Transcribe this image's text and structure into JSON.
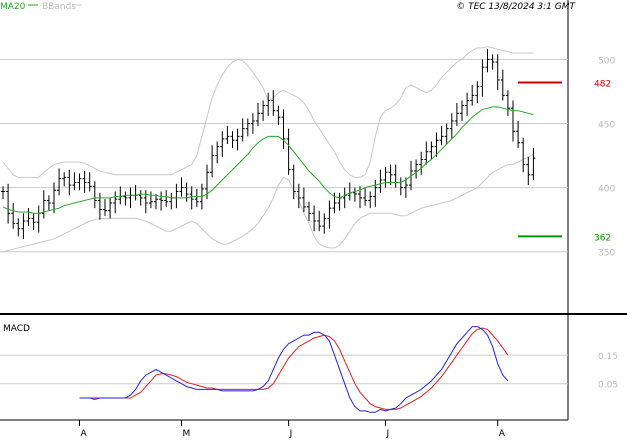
{
  "header": {
    "ma_label": "MA20",
    "bb_label": "BBands",
    "copyright": "© TEC 13/8/2024 3:1 GMT"
  },
  "macd_panel": {
    "label": "MACD"
  },
  "colors": {
    "ma": "#22aa22",
    "bbands": "#c8c8c8",
    "resistance": "#cc0000",
    "support": "#009900",
    "macd": "#2222dd",
    "signal": "#dd2222",
    "bars": "#000000",
    "grid": "#cccccc"
  },
  "chart_data": [
    {
      "type": "ohlc",
      "ylim": [
        303,
        537
      ],
      "yticks": [
        350,
        400,
        450,
        500
      ],
      "ytick_labels": [
        "350",
        "400",
        "450",
        "500"
      ],
      "x_month_labels": [
        {
          "label": "A",
          "index": 15
        },
        {
          "label": "M",
          "index": 35
        },
        {
          "label": "J",
          "index": 56
        },
        {
          "label": "J",
          "index": 75
        },
        {
          "label": "A",
          "index": 97
        }
      ],
      "levels": [
        {
          "name": "resistance",
          "value": 482,
          "label": "482"
        },
        {
          "name": "support",
          "value": 362,
          "label": "362"
        }
      ],
      "closes": [
        397,
        380,
        372,
        368,
        374,
        376,
        373,
        380,
        390,
        388,
        398,
        407,
        408,
        402,
        404,
        407,
        404,
        401,
        390,
        383,
        382,
        388,
        391,
        393,
        392,
        394,
        394,
        392,
        388,
        389,
        391,
        390,
        389,
        392,
        397,
        400,
        395,
        391,
        389,
        399,
        412,
        425,
        432,
        438,
        440,
        437,
        440,
        446,
        450,
        452,
        458,
        464,
        468,
        460,
        455,
        438,
        414,
        397,
        392,
        385,
        380,
        374,
        370,
        376,
        384,
        388,
        392,
        394,
        396,
        395,
        392,
        390,
        393,
        400,
        406,
        412,
        410,
        404,
        400,
        402,
        413,
        418,
        422,
        428,
        432,
        437,
        440,
        446,
        452,
        458,
        464,
        468,
        472,
        479,
        494,
        500,
        498,
        484,
        472,
        462,
        444,
        435,
        418,
        410,
        423
      ],
      "ma20": [
        385,
        383,
        382,
        381,
        381,
        381,
        380,
        380,
        381,
        382,
        383,
        384,
        386,
        387,
        388,
        389,
        390,
        391,
        392,
        392,
        392,
        392,
        393,
        393,
        394,
        394,
        394,
        395,
        395,
        394,
        394,
        393,
        393,
        392,
        392,
        392,
        392,
        393,
        393,
        393,
        395,
        398,
        402,
        406,
        410,
        414,
        418,
        422,
        426,
        431,
        435,
        438,
        440,
        440,
        440,
        437,
        433,
        428,
        423,
        418,
        413,
        409,
        405,
        400,
        396,
        393,
        392,
        394,
        396,
        397,
        398,
        400,
        401,
        402,
        403,
        404,
        404,
        404,
        404,
        406,
        409,
        412,
        415,
        419,
        422,
        426,
        430,
        434,
        438,
        442,
        447,
        451,
        455,
        458,
        461,
        462,
        463,
        463,
        462,
        461,
        460,
        460,
        459,
        458,
        457
      ],
      "bb_upper": [
        420,
        415,
        410,
        408,
        408,
        408,
        408,
        408,
        412,
        415,
        418,
        419,
        420,
        420,
        420,
        420,
        419,
        417,
        415,
        413,
        412,
        411,
        410,
        410,
        410,
        410,
        410,
        410,
        410,
        410,
        410,
        410,
        410,
        410,
        412,
        414,
        416,
        418,
        425,
        440,
        455,
        470,
        480,
        488,
        494,
        498,
        500,
        499,
        495,
        490,
        484,
        478,
        468,
        470,
        474,
        476,
        474,
        472,
        470,
        466,
        460,
        452,
        446,
        440,
        434,
        428,
        420,
        414,
        410,
        408,
        408,
        410,
        420,
        440,
        455,
        460,
        462,
        465,
        470,
        478,
        480,
        478,
        476,
        474,
        476,
        480,
        486,
        490,
        494,
        498,
        500,
        504,
        507,
        509,
        509,
        510,
        509,
        508,
        507,
        506,
        505,
        505,
        505,
        505,
        505
      ],
      "bb_lower": [
        350,
        351,
        352,
        353,
        354,
        355,
        356,
        357,
        358,
        359,
        360,
        362,
        364,
        366,
        368,
        370,
        372,
        374,
        375,
        376,
        376,
        376,
        376,
        376,
        376,
        376,
        376,
        375,
        374,
        372,
        370,
        368,
        366,
        366,
        368,
        370,
        372,
        374,
        372,
        368,
        364,
        360,
        358,
        356,
        356,
        358,
        360,
        362,
        365,
        368,
        372,
        378,
        384,
        392,
        402,
        408,
        406,
        398,
        390,
        380,
        372,
        362,
        356,
        354,
        353,
        353,
        355,
        360,
        366,
        372,
        376,
        378,
        380,
        380,
        380,
        380,
        380,
        379,
        378,
        378,
        380,
        382,
        384,
        385,
        386,
        387,
        388,
        389,
        390,
        392,
        394,
        396,
        398,
        400,
        404,
        408,
        412,
        414,
        416,
        418,
        418,
        420,
        422,
        424,
        426
      ]
    },
    {
      "type": "line",
      "title": "MACD",
      "ylim": [
        -0.07,
        0.28
      ],
      "yticks": [
        0.05,
        0.15
      ],
      "ytick_labels": [
        "0.05",
        "0.15"
      ],
      "macd": [
        0.0,
        0.0,
        0.0,
        -0.005,
        0.0,
        0.0,
        0.0,
        0.0,
        0.0,
        0.0,
        0.01,
        0.03,
        0.06,
        0.08,
        0.09,
        0.1,
        0.09,
        0.08,
        0.07,
        0.06,
        0.05,
        0.04,
        0.035,
        0.03,
        0.03,
        0.03,
        0.03,
        0.03,
        0.025,
        0.025,
        0.025,
        0.025,
        0.025,
        0.025,
        0.025,
        0.03,
        0.04,
        0.06,
        0.1,
        0.14,
        0.17,
        0.19,
        0.2,
        0.21,
        0.22,
        0.22,
        0.23,
        0.23,
        0.22,
        0.2,
        0.15,
        0.1,
        0.05,
        0.0,
        -0.03,
        -0.045,
        -0.045,
        -0.05,
        -0.05,
        -0.04,
        -0.045,
        -0.04,
        -0.035,
        -0.02,
        0.0,
        0.01,
        0.02,
        0.03,
        0.045,
        0.06,
        0.08,
        0.1,
        0.13,
        0.16,
        0.19,
        0.21,
        0.23,
        0.25,
        0.25,
        0.24,
        0.22,
        0.18,
        0.12,
        0.08,
        0.06
      ],
      "signal": [
        0.0,
        0.0,
        0.0,
        0.0,
        0.0,
        0.0,
        0.0,
        0.0,
        0.0,
        0.0,
        0.0,
        0.01,
        0.02,
        0.04,
        0.06,
        0.08,
        0.085,
        0.085,
        0.08,
        0.075,
        0.065,
        0.055,
        0.05,
        0.045,
        0.04,
        0.035,
        0.035,
        0.03,
        0.03,
        0.03,
        0.03,
        0.03,
        0.03,
        0.03,
        0.03,
        0.03,
        0.03,
        0.035,
        0.05,
        0.08,
        0.11,
        0.14,
        0.16,
        0.18,
        0.19,
        0.2,
        0.21,
        0.215,
        0.22,
        0.215,
        0.2,
        0.17,
        0.13,
        0.09,
        0.05,
        0.02,
        0.0,
        -0.02,
        -0.03,
        -0.035,
        -0.04,
        -0.04,
        -0.04,
        -0.035,
        -0.025,
        -0.015,
        -0.005,
        0.005,
        0.02,
        0.035,
        0.055,
        0.075,
        0.1,
        0.125,
        0.15,
        0.175,
        0.2,
        0.225,
        0.24,
        0.245,
        0.24,
        0.22,
        0.2,
        0.175,
        0.15
      ]
    }
  ]
}
